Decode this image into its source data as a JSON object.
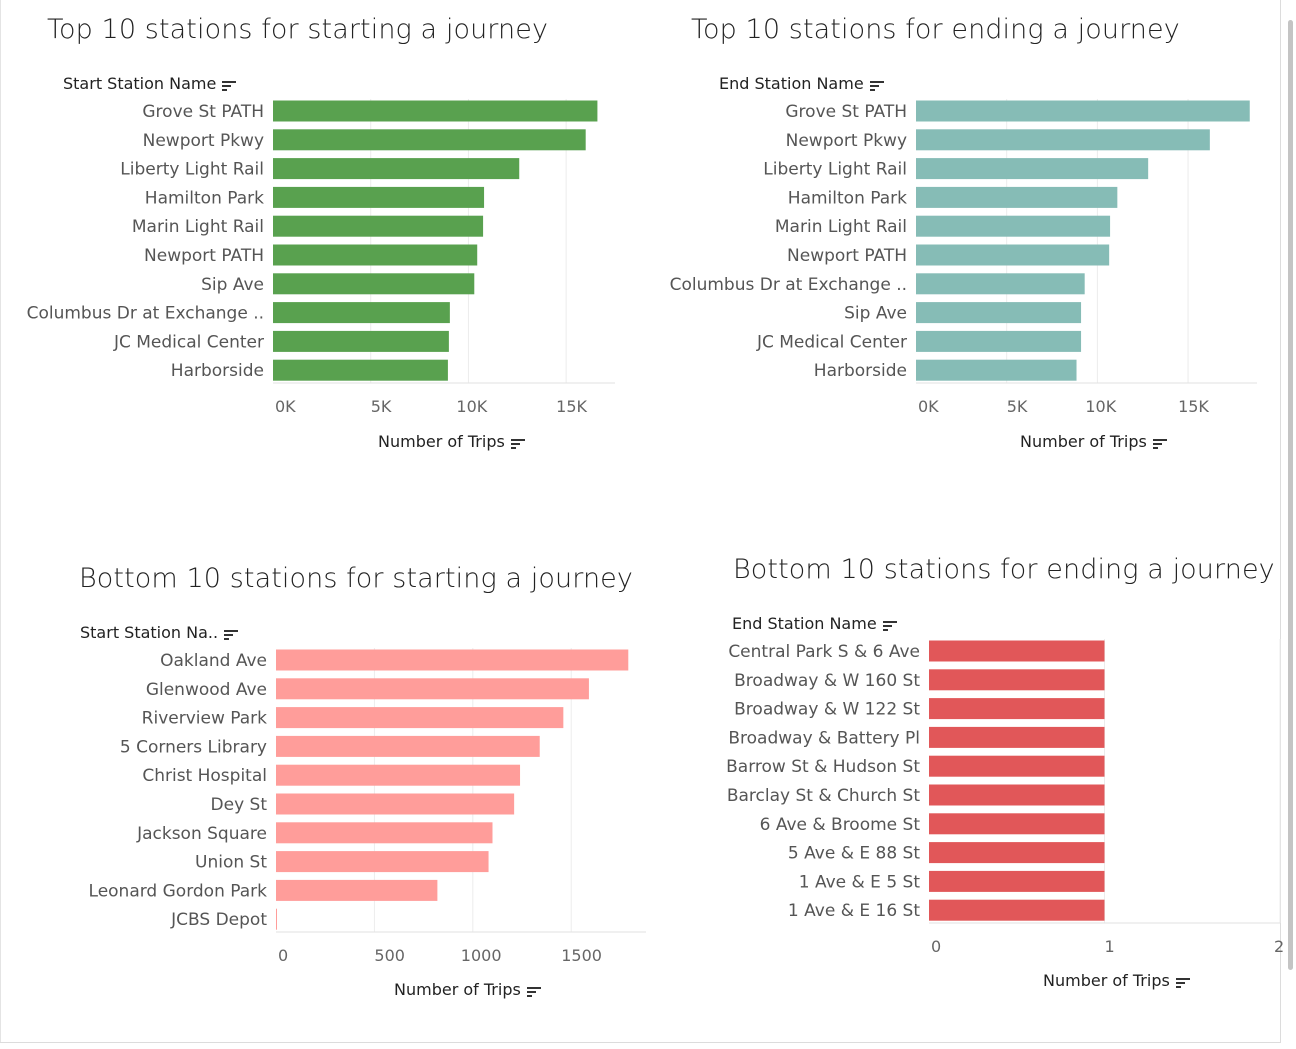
{
  "chart_data": [
    {
      "type": "bar",
      "title": "Top 10 stations for starting a journey",
      "row_header": "Start Station Name",
      "xlabel": "Number of Trips",
      "categories": [
        "Grove St PATH",
        "Newport Pkwy",
        "Liberty Light Rail",
        "Hamilton Park",
        "Marin Light Rail",
        "Newport PATH",
        "Sip Ave",
        "Columbus Dr at Exchange ..",
        "JC Medical Center",
        "Harborside"
      ],
      "values": [
        16600,
        16000,
        12600,
        10800,
        10750,
        10450,
        10300,
        9050,
        9000,
        8950
      ],
      "xlim": [
        0,
        17500
      ],
      "xticks": [
        "0K",
        "5K",
        "10K",
        "15K"
      ],
      "tick_values": [
        0,
        5000,
        10000,
        15000
      ],
      "color": "#59a14f",
      "grid": true
    },
    {
      "type": "bar",
      "title": "Top 10 stations for ending a journey",
      "row_header": "End Station Name",
      "xlabel": "Number of Trips",
      "categories": [
        "Grove St PATH",
        "Newport Pkwy",
        "Liberty Light Rail",
        "Hamilton Park",
        "Marin Light Rail",
        "Newport PATH",
        "Columbus Dr at Exchange ..",
        "Sip Ave",
        "JC Medical Center",
        "Harborside"
      ],
      "values": [
        18400,
        16200,
        12800,
        11100,
        10700,
        10650,
        9300,
        9100,
        9100,
        8850
      ],
      "xlim": [
        0,
        18800
      ],
      "xticks": [
        "0K",
        "5K",
        "10K",
        "15K"
      ],
      "tick_values": [
        0,
        5000,
        10000,
        15000
      ],
      "color": "#86bcb6",
      "grid": true
    },
    {
      "type": "bar",
      "title": "Bottom 10 stations for starting a journey",
      "row_header": "Start Station Na..",
      "xlabel": "Number of Trips",
      "categories": [
        "Oakland Ave",
        "Glenwood Ave",
        "Riverview Park",
        "5 Corners Library",
        "Christ Hospital",
        "Dey St",
        "Jackson Square",
        "Union St",
        "Leonard Gordon Park",
        "JCBS Depot"
      ],
      "values": [
        1790,
        1590,
        1460,
        1340,
        1240,
        1210,
        1100,
        1080,
        820,
        2
      ],
      "xlim": [
        0,
        1880
      ],
      "xticks": [
        "0",
        "500",
        "1000",
        "1500"
      ],
      "tick_values": [
        0,
        500,
        1000,
        1500
      ],
      "color": "#ff9d9a",
      "grid": true
    },
    {
      "type": "bar",
      "title": "Bottom 10 stations for ending a journey",
      "row_header": "End Station Name",
      "xlabel": "Number of Trips",
      "categories": [
        "Central Park S & 6 Ave",
        "Broadway & W 160 St",
        "Broadway & W 122 St",
        "Broadway & Battery Pl",
        "Barrow St & Hudson St",
        "Barclay St & Church St",
        "6 Ave & Broome St",
        "5 Ave & E 88 St",
        "1 Ave & E 5 St",
        "1 Ave & E 16 St"
      ],
      "values": [
        1,
        1,
        1,
        1,
        1,
        1,
        1,
        1,
        1,
        1
      ],
      "xlim": [
        0,
        2
      ],
      "xticks": [
        "0",
        "1",
        "2"
      ],
      "tick_values": [
        0,
        1,
        2
      ],
      "color": "#e15759",
      "grid": true
    }
  ]
}
